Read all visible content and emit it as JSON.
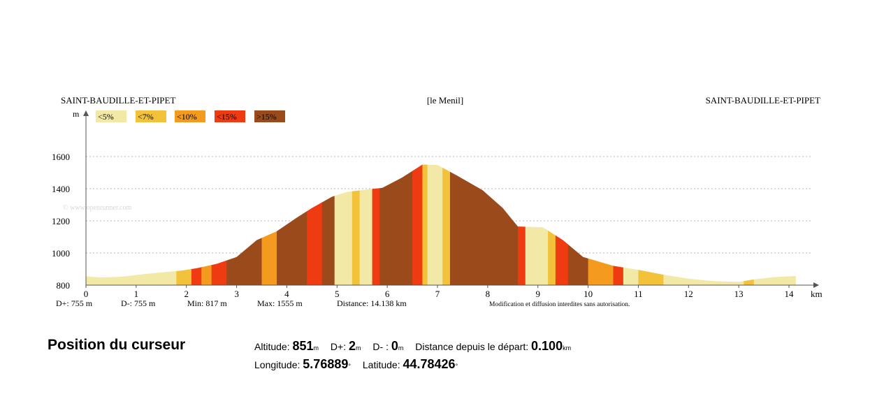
{
  "header": {
    "start_place": "SAINT-BAUDILLE-ET-PIPET",
    "mid_place": "[le Menil]",
    "end_place": "SAINT-BAUDILLE-ET-PIPET"
  },
  "legend": {
    "items": [
      {
        "label": "<5%",
        "color": "#f3e9a6"
      },
      {
        "label": "<7%",
        "color": "#f2c23b"
      },
      {
        "label": "<10%",
        "color": "#f39a1f"
      },
      {
        "label": "<15%",
        "color": "#ee3b12"
      },
      {
        "label": ">15%",
        "color": "#9a4a1b"
      }
    ]
  },
  "watermark": "© www.openrunner.com",
  "stats": {
    "dplus": "D+: 755 m",
    "dminus": "D-: 755 m",
    "min": "Min: 817 m",
    "max": "Max: 1555 m",
    "distance": "Distance: 14.138 km",
    "notice": "Modification et diffusion interdites sans autorisation."
  },
  "chart_data": {
    "type": "area",
    "xlabel": "km",
    "ylabel": "m",
    "xlim": [
      0,
      14.2
    ],
    "ylim": [
      800,
      1650
    ],
    "x_ticks": [
      0,
      1,
      2,
      3,
      4,
      5,
      6,
      7,
      8,
      9,
      10,
      11,
      12,
      13,
      14
    ],
    "y_ticks": [
      800,
      1000,
      1200,
      1400,
      1600
    ],
    "grid": true,
    "profile": [
      [
        0,
        855
      ],
      [
        0.3,
        848
      ],
      [
        0.7,
        852
      ],
      [
        1.2,
        870
      ],
      [
        1.6,
        882
      ],
      [
        1.9,
        890
      ],
      [
        2.2,
        905
      ],
      [
        2.6,
        932
      ],
      [
        3.0,
        975
      ],
      [
        3.4,
        1080
      ],
      [
        3.8,
        1135
      ],
      [
        4.2,
        1220
      ],
      [
        4.5,
        1280
      ],
      [
        4.9,
        1350
      ],
      [
        5.2,
        1380
      ],
      [
        5.6,
        1395
      ],
      [
        5.9,
        1405
      ],
      [
        6.3,
        1470
      ],
      [
        6.7,
        1550
      ],
      [
        7.0,
        1548
      ],
      [
        7.4,
        1480
      ],
      [
        7.9,
        1390
      ],
      [
        8.3,
        1280
      ],
      [
        8.6,
        1165
      ],
      [
        9.1,
        1160
      ],
      [
        9.5,
        1080
      ],
      [
        9.9,
        975
      ],
      [
        10.5,
        920
      ],
      [
        11.0,
        895
      ],
      [
        11.5,
        865
      ],
      [
        12.0,
        840
      ],
      [
        12.5,
        825
      ],
      [
        13.0,
        820
      ],
      [
        13.3,
        835
      ],
      [
        13.7,
        850
      ],
      [
        14.0,
        855
      ],
      [
        14.138,
        857
      ]
    ],
    "slope_segments": [
      {
        "from": 0,
        "to": 1.8,
        "class": 0
      },
      {
        "from": 1.8,
        "to": 2.1,
        "class": 1
      },
      {
        "from": 2.1,
        "to": 2.3,
        "class": 3
      },
      {
        "from": 2.3,
        "to": 2.5,
        "class": 2
      },
      {
        "from": 2.5,
        "to": 2.8,
        "class": 3
      },
      {
        "from": 2.8,
        "to": 3.1,
        "class": 4
      },
      {
        "from": 3.1,
        "to": 3.5,
        "class": 4
      },
      {
        "from": 3.5,
        "to": 3.8,
        "class": 2
      },
      {
        "from": 3.8,
        "to": 4.4,
        "class": 4
      },
      {
        "from": 4.4,
        "to": 4.7,
        "class": 3
      },
      {
        "from": 4.7,
        "to": 4.95,
        "class": 4
      },
      {
        "from": 4.95,
        "to": 5.3,
        "class": 0
      },
      {
        "from": 5.3,
        "to": 5.45,
        "class": 1
      },
      {
        "from": 5.45,
        "to": 5.7,
        "class": 0
      },
      {
        "from": 5.7,
        "to": 5.85,
        "class": 3
      },
      {
        "from": 5.85,
        "to": 6.5,
        "class": 4
      },
      {
        "from": 6.5,
        "to": 6.7,
        "class": 3
      },
      {
        "from": 6.7,
        "to": 6.8,
        "class": 1
      },
      {
        "from": 6.8,
        "to": 7.1,
        "class": 0
      },
      {
        "from": 7.1,
        "to": 7.25,
        "class": 1
      },
      {
        "from": 7.25,
        "to": 8.6,
        "class": 4
      },
      {
        "from": 8.6,
        "to": 8.75,
        "class": 3
      },
      {
        "from": 8.75,
        "to": 9.2,
        "class": 0
      },
      {
        "from": 9.2,
        "to": 9.35,
        "class": 1
      },
      {
        "from": 9.35,
        "to": 9.6,
        "class": 3
      },
      {
        "from": 9.6,
        "to": 10.0,
        "class": 4
      },
      {
        "from": 10.0,
        "to": 10.5,
        "class": 2
      },
      {
        "from": 10.5,
        "to": 10.7,
        "class": 3
      },
      {
        "from": 10.7,
        "to": 11.0,
        "class": 0
      },
      {
        "from": 11.0,
        "to": 11.5,
        "class": 1
      },
      {
        "from": 11.5,
        "to": 13.1,
        "class": 0
      },
      {
        "from": 13.1,
        "to": 13.3,
        "class": 1
      },
      {
        "from": 13.3,
        "to": 14.138,
        "class": 0
      }
    ]
  },
  "cursor_panel": {
    "title": "Position du curseur",
    "altitude_label": "Altitude:",
    "altitude_value": "851",
    "altitude_unit": "m",
    "dplus_label": "D+:",
    "dplus_value": "2",
    "dplus_unit": "m",
    "dminus_label": "D- :",
    "dminus_value": "0",
    "dminus_unit": "m",
    "distance_label": "Distance depuis le départ:",
    "distance_value": "0.100",
    "distance_unit": "km",
    "longitude_label": "Longitude:",
    "longitude_value": "5.76889",
    "longitude_unit": "°",
    "latitude_label": "Latitude:",
    "latitude_value": "44.78426",
    "latitude_unit": "°"
  }
}
